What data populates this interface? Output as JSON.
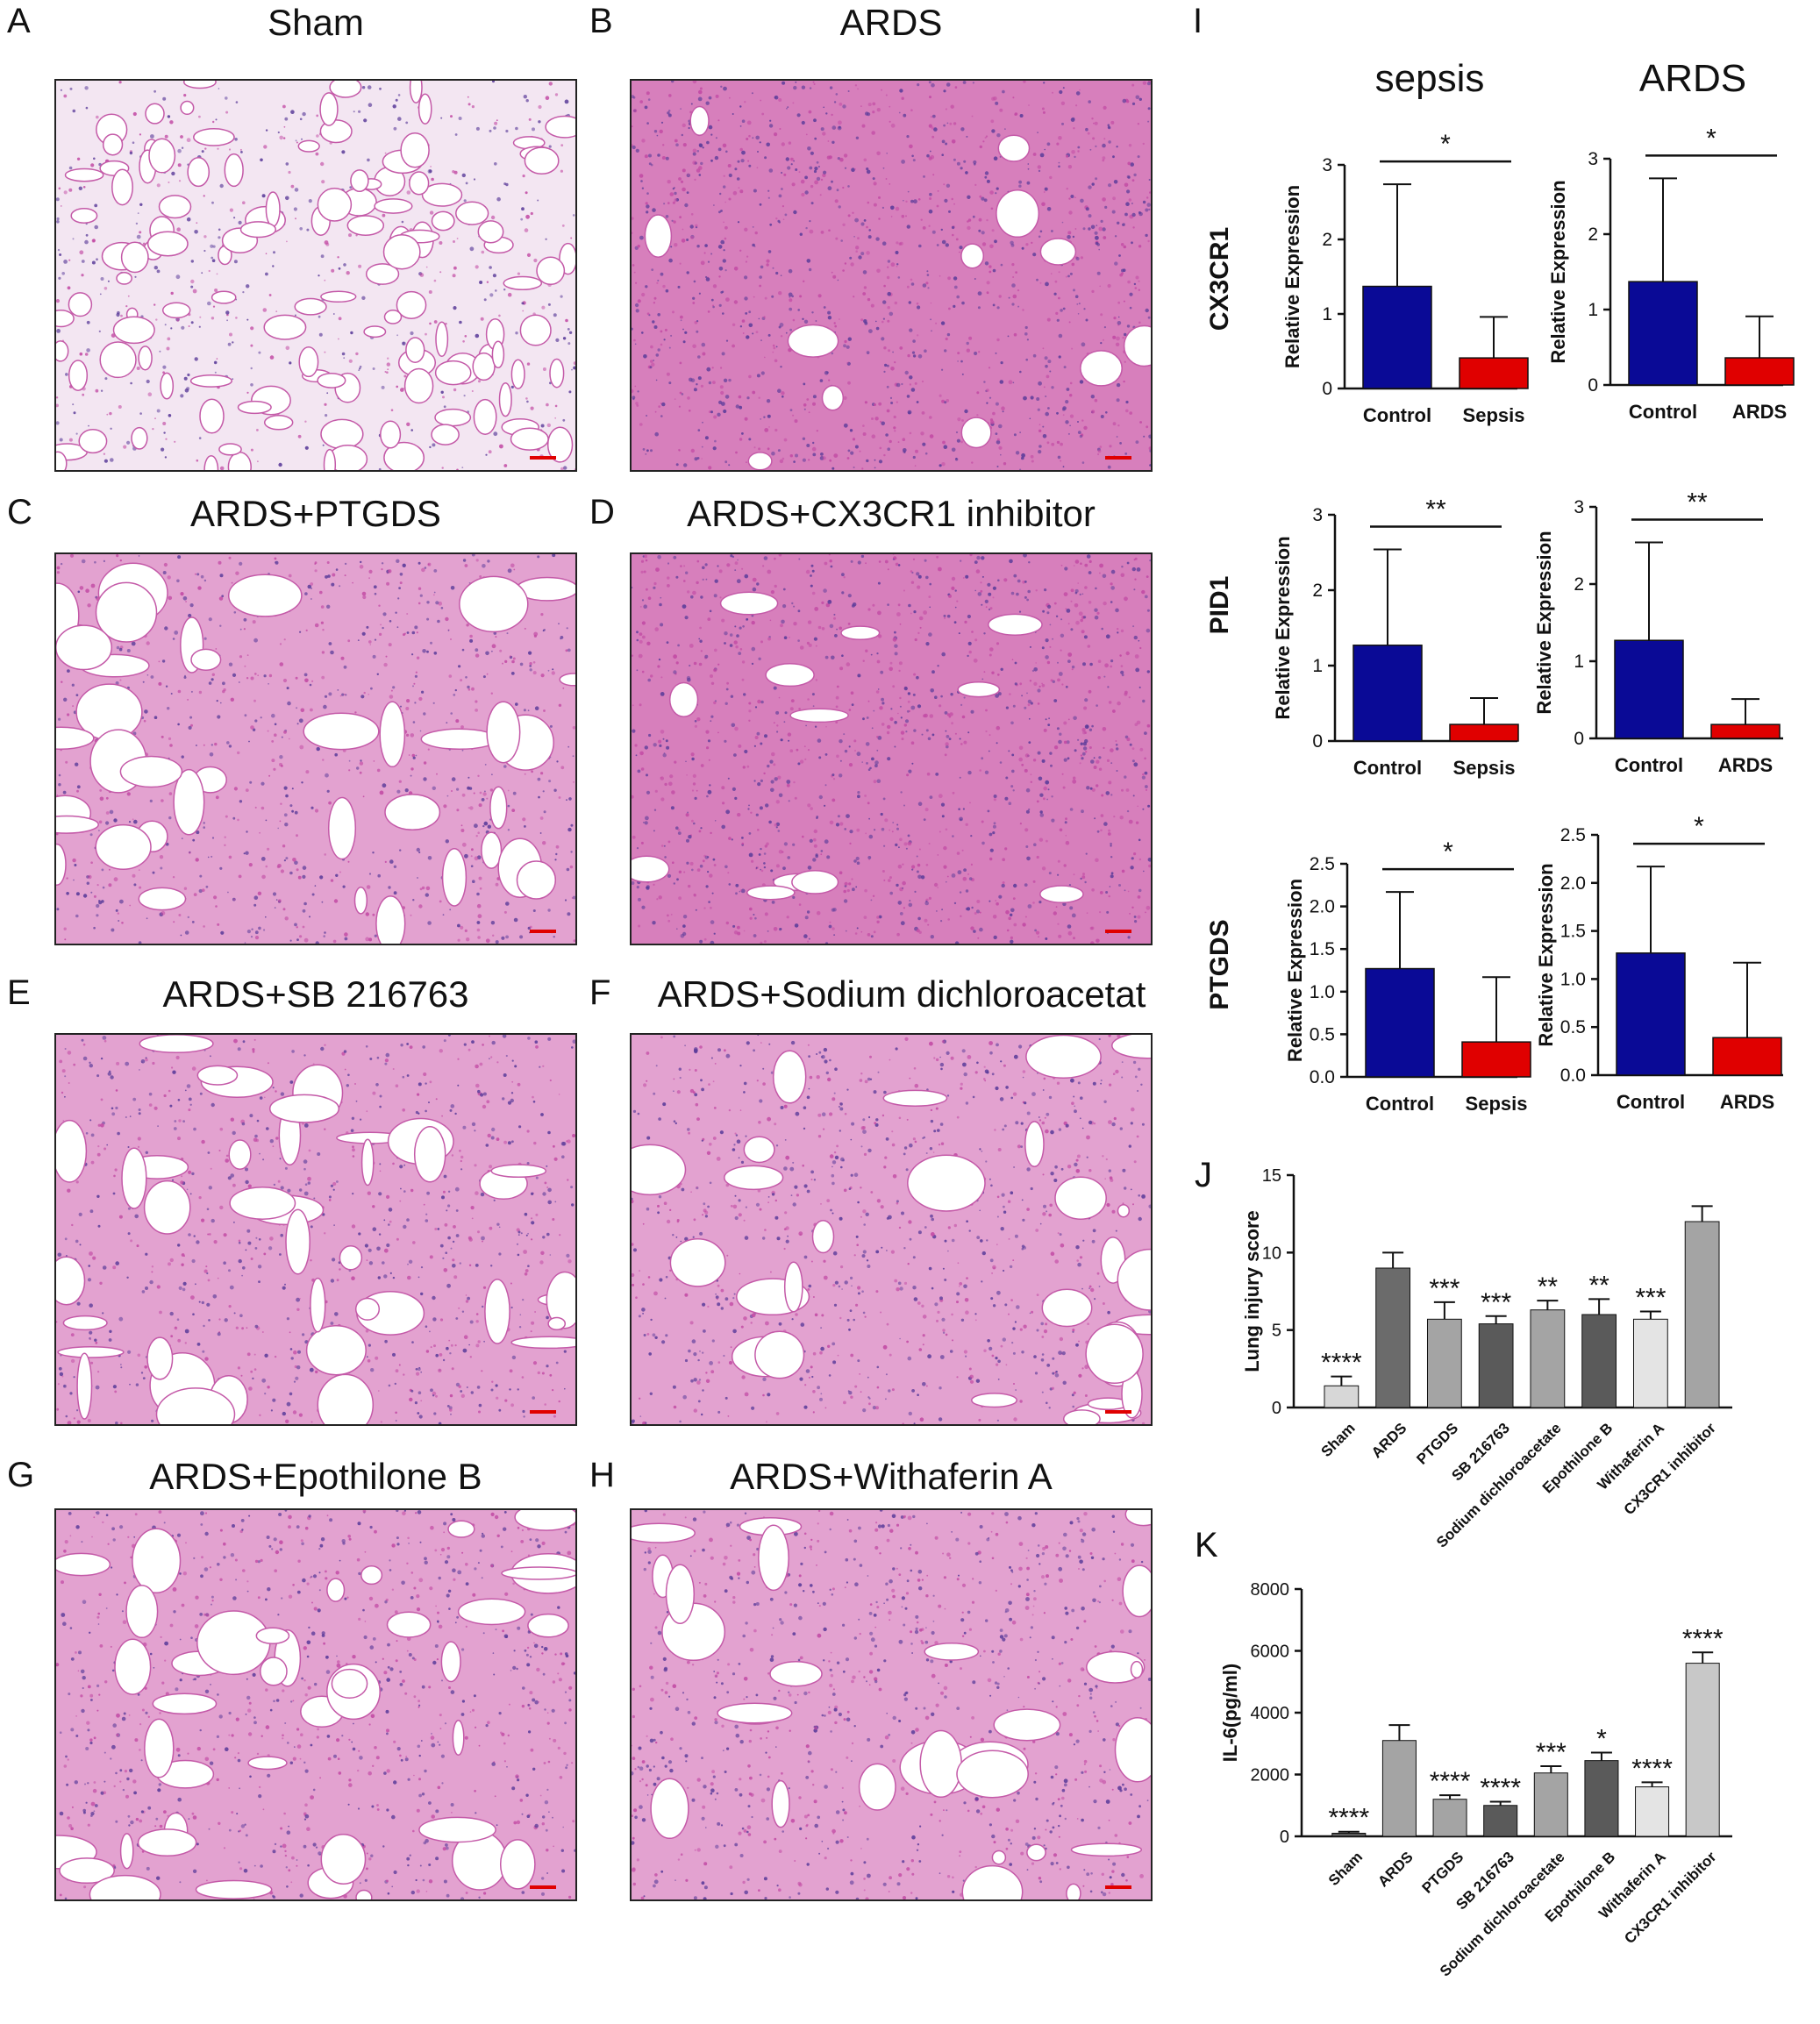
{
  "panel_letters": {
    "A": "A",
    "B": "B",
    "C": "C",
    "D": "D",
    "E": "E",
    "F": "F",
    "G": "G",
    "H": "H",
    "I": "I",
    "J": "J",
    "K": "K"
  },
  "histology": [
    {
      "letter": "A",
      "title": "Sham",
      "style": "sham"
    },
    {
      "letter": "B",
      "title": "ARDS",
      "style": "dense"
    },
    {
      "letter": "C",
      "title": "ARDS+PTGDS",
      "style": "open"
    },
    {
      "letter": "D",
      "title": "ARDS+CX3CR1 inhibitor",
      "style": "dense"
    },
    {
      "letter": "E",
      "title": "ARDS+SB 216763",
      "style": "open"
    },
    {
      "letter": "F",
      "title": "ARDS+Sodium dichloroacetat",
      "style": "mixed"
    },
    {
      "letter": "G",
      "title": "ARDS+Epothilone B",
      "style": "open"
    },
    {
      "letter": "H",
      "title": "ARDS+Withaferin A",
      "style": "mixed"
    }
  ],
  "panel_I": {
    "column_titles": [
      "sepsis",
      "ARDS"
    ],
    "row_genes": [
      "CX3CR1",
      "PID1",
      "PTGDS"
    ],
    "ylabel": "Relative  Expression",
    "colors": {
      "control": "#0a0a96",
      "disease": "#e00000"
    }
  },
  "chart_data": [
    {
      "type": "bar",
      "id": "I-CX3CR1-sepsis",
      "categories": [
        "Control",
        "Sepsis"
      ],
      "values": [
        1.37,
        0.41
      ],
      "errors": [
        1.37,
        0.55
      ],
      "ylim": [
        0,
        3
      ],
      "yticks": [
        "0",
        "1",
        "2",
        "3"
      ],
      "significance": "*",
      "ylabel": "Relative  Expression"
    },
    {
      "type": "bar",
      "id": "I-CX3CR1-ARDS",
      "categories": [
        "Control",
        "ARDS"
      ],
      "values": [
        1.37,
        0.36
      ],
      "errors": [
        1.37,
        0.55
      ],
      "ylim": [
        0,
        3
      ],
      "yticks": [
        "0",
        "1",
        "2",
        "3"
      ],
      "significance": "*",
      "ylabel": "Relative  Expression"
    },
    {
      "type": "bar",
      "id": "I-PID1-sepsis",
      "categories": [
        "Control",
        "Sepsis"
      ],
      "values": [
        1.27,
        0.22
      ],
      "errors": [
        1.27,
        0.35
      ],
      "ylim": [
        0,
        3
      ],
      "yticks": [
        "0",
        "1",
        "2",
        "3"
      ],
      "significance": "**",
      "ylabel": "Relative  Expression"
    },
    {
      "type": "bar",
      "id": "I-PID1-ARDS",
      "categories": [
        "Control",
        "ARDS"
      ],
      "values": [
        1.27,
        0.18
      ],
      "errors": [
        1.27,
        0.33
      ],
      "ylim": [
        0,
        3
      ],
      "yticks": [
        "0",
        "1",
        "2",
        "3"
      ],
      "significance": "**",
      "ylabel": "Relative  Expression"
    },
    {
      "type": "bar",
      "id": "I-PTGDS-sepsis",
      "categories": [
        "Control",
        "Sepsis"
      ],
      "values": [
        1.27,
        0.41
      ],
      "errors": [
        0.9,
        0.76
      ],
      "ylim": [
        0,
        2.5
      ],
      "yticks": [
        "0.0",
        "0.5",
        "1.0",
        "1.5",
        "2.0",
        "2.5"
      ],
      "significance": "*",
      "ylabel": "Relative  Expression"
    },
    {
      "type": "bar",
      "id": "I-PTGDS-ARDS",
      "categories": [
        "Control",
        "ARDS"
      ],
      "values": [
        1.27,
        0.39
      ],
      "errors": [
        0.9,
        0.78
      ],
      "ylim": [
        0,
        2.5
      ],
      "yticks": [
        "0.0",
        "0.5",
        "1.0",
        "1.5",
        "2.0",
        "2.5"
      ],
      "significance": "*",
      "ylabel": "Relative  Expression"
    },
    {
      "type": "bar",
      "id": "J",
      "categories": [
        "Sham",
        "ARDS",
        "PTGDS",
        "SB 216763",
        "Sodium dichloroacetate",
        "Epothilone B",
        "Withaferin A",
        "CX3CR1 inhibitor"
      ],
      "values": [
        1.4,
        9.0,
        5.7,
        5.4,
        6.3,
        6.0,
        5.7,
        12.0
      ],
      "errors": [
        0.6,
        1.0,
        1.1,
        0.5,
        0.6,
        1.0,
        0.5,
        1.0
      ],
      "significance": [
        "****",
        "",
        "***",
        "***",
        "**",
        "**",
        "***",
        ""
      ],
      "ylim": [
        0,
        15
      ],
      "yticks": [
        "0",
        "5",
        "10",
        "15"
      ],
      "ylabel": "Lung injury score",
      "colors": [
        "#d7d7d7",
        "#6b6b6b",
        "#a4a4a4",
        "#5a5a5a",
        "#a4a4a4",
        "#5a5a5a",
        "#e4e4e4",
        "#a4a4a4"
      ]
    },
    {
      "type": "bar",
      "id": "K",
      "categories": [
        "Sham",
        "ARDS",
        "PTGDS",
        "SB 216763",
        "Sodium dichloroacetate",
        "Epothilone B",
        "Withaferin A",
        "CX3CR1 inhibitor"
      ],
      "values": [
        100,
        3100,
        1200,
        1000,
        2050,
        2450,
        1600,
        5600
      ],
      "errors": [
        50,
        500,
        130,
        120,
        220,
        260,
        150,
        350
      ],
      "significance": [
        "****",
        "",
        "****",
        "****",
        "***",
        "*",
        "****",
        "****"
      ],
      "ylim": [
        0,
        8000
      ],
      "yticks": [
        "0",
        "2000",
        "4000",
        "6000",
        "8000"
      ],
      "ylabel": "IL-6(pg/ml)",
      "colors": [
        "#5a5a5a",
        "#a4a4a4",
        "#a4a4a4",
        "#5a5a5a",
        "#a4a4a4",
        "#5a5a5a",
        "#e4e4e4",
        "#c8c8c8"
      ]
    }
  ]
}
